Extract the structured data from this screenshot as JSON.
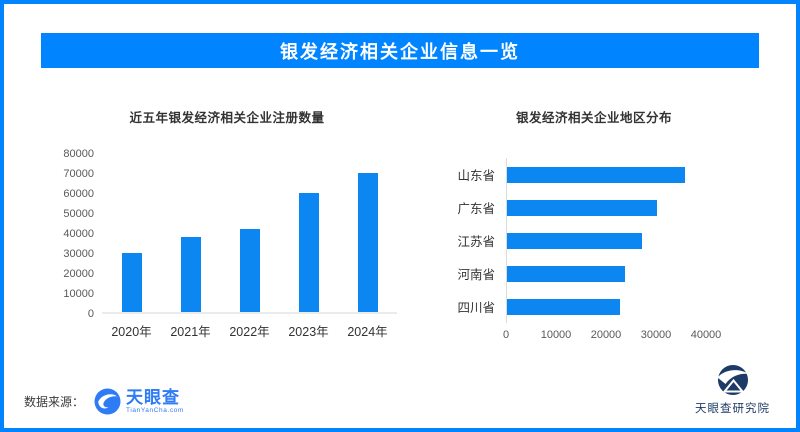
{
  "header": {
    "title": "银发经济相关企业信息一览"
  },
  "colors": {
    "accent": "#0084ff",
    "bar": "#0c86f0",
    "banner_text": "#ffffff",
    "title_text": "#333333",
    "axis_text": "#595959",
    "tyc_blue": "#2e7cf5",
    "institute_navy": "#1c3b69"
  },
  "chart_data": [
    {
      "type": "bar",
      "orientation": "vertical",
      "title": "近五年银发经济相关企业注册数量",
      "categories": [
        "2020年",
        "2021年",
        "2022年",
        "2023年",
        "2024年"
      ],
      "values": [
        29500,
        37500,
        41500,
        59500,
        69500
      ],
      "ylabel": "",
      "xlabel": "",
      "ylim": [
        0,
        80000
      ],
      "yticks": [
        "80000",
        "70000",
        "60000",
        "50000",
        "40000",
        "30000",
        "20000",
        "10000",
        "0"
      ],
      "grid": false,
      "legend": "none"
    },
    {
      "type": "bar",
      "orientation": "horizontal",
      "title": "银发经济相关企业地区分布",
      "categories": [
        "山东省",
        "广东省",
        "江苏省",
        "河南省",
        "四川省"
      ],
      "values": [
        35500,
        30000,
        27000,
        23500,
        22500
      ],
      "xlabel": "",
      "ylabel": "",
      "xlim": [
        0,
        40000
      ],
      "xticks": [
        "0",
        "10000",
        "20000",
        "30000",
        "40000"
      ],
      "grid": false,
      "legend": "none"
    }
  ],
  "footer": {
    "source_label": "数据来源：",
    "tyc_logo_name": "天眼查",
    "tyc_logo_sub": "TianYanCha.com",
    "institute_name": "天眼查研究院"
  }
}
